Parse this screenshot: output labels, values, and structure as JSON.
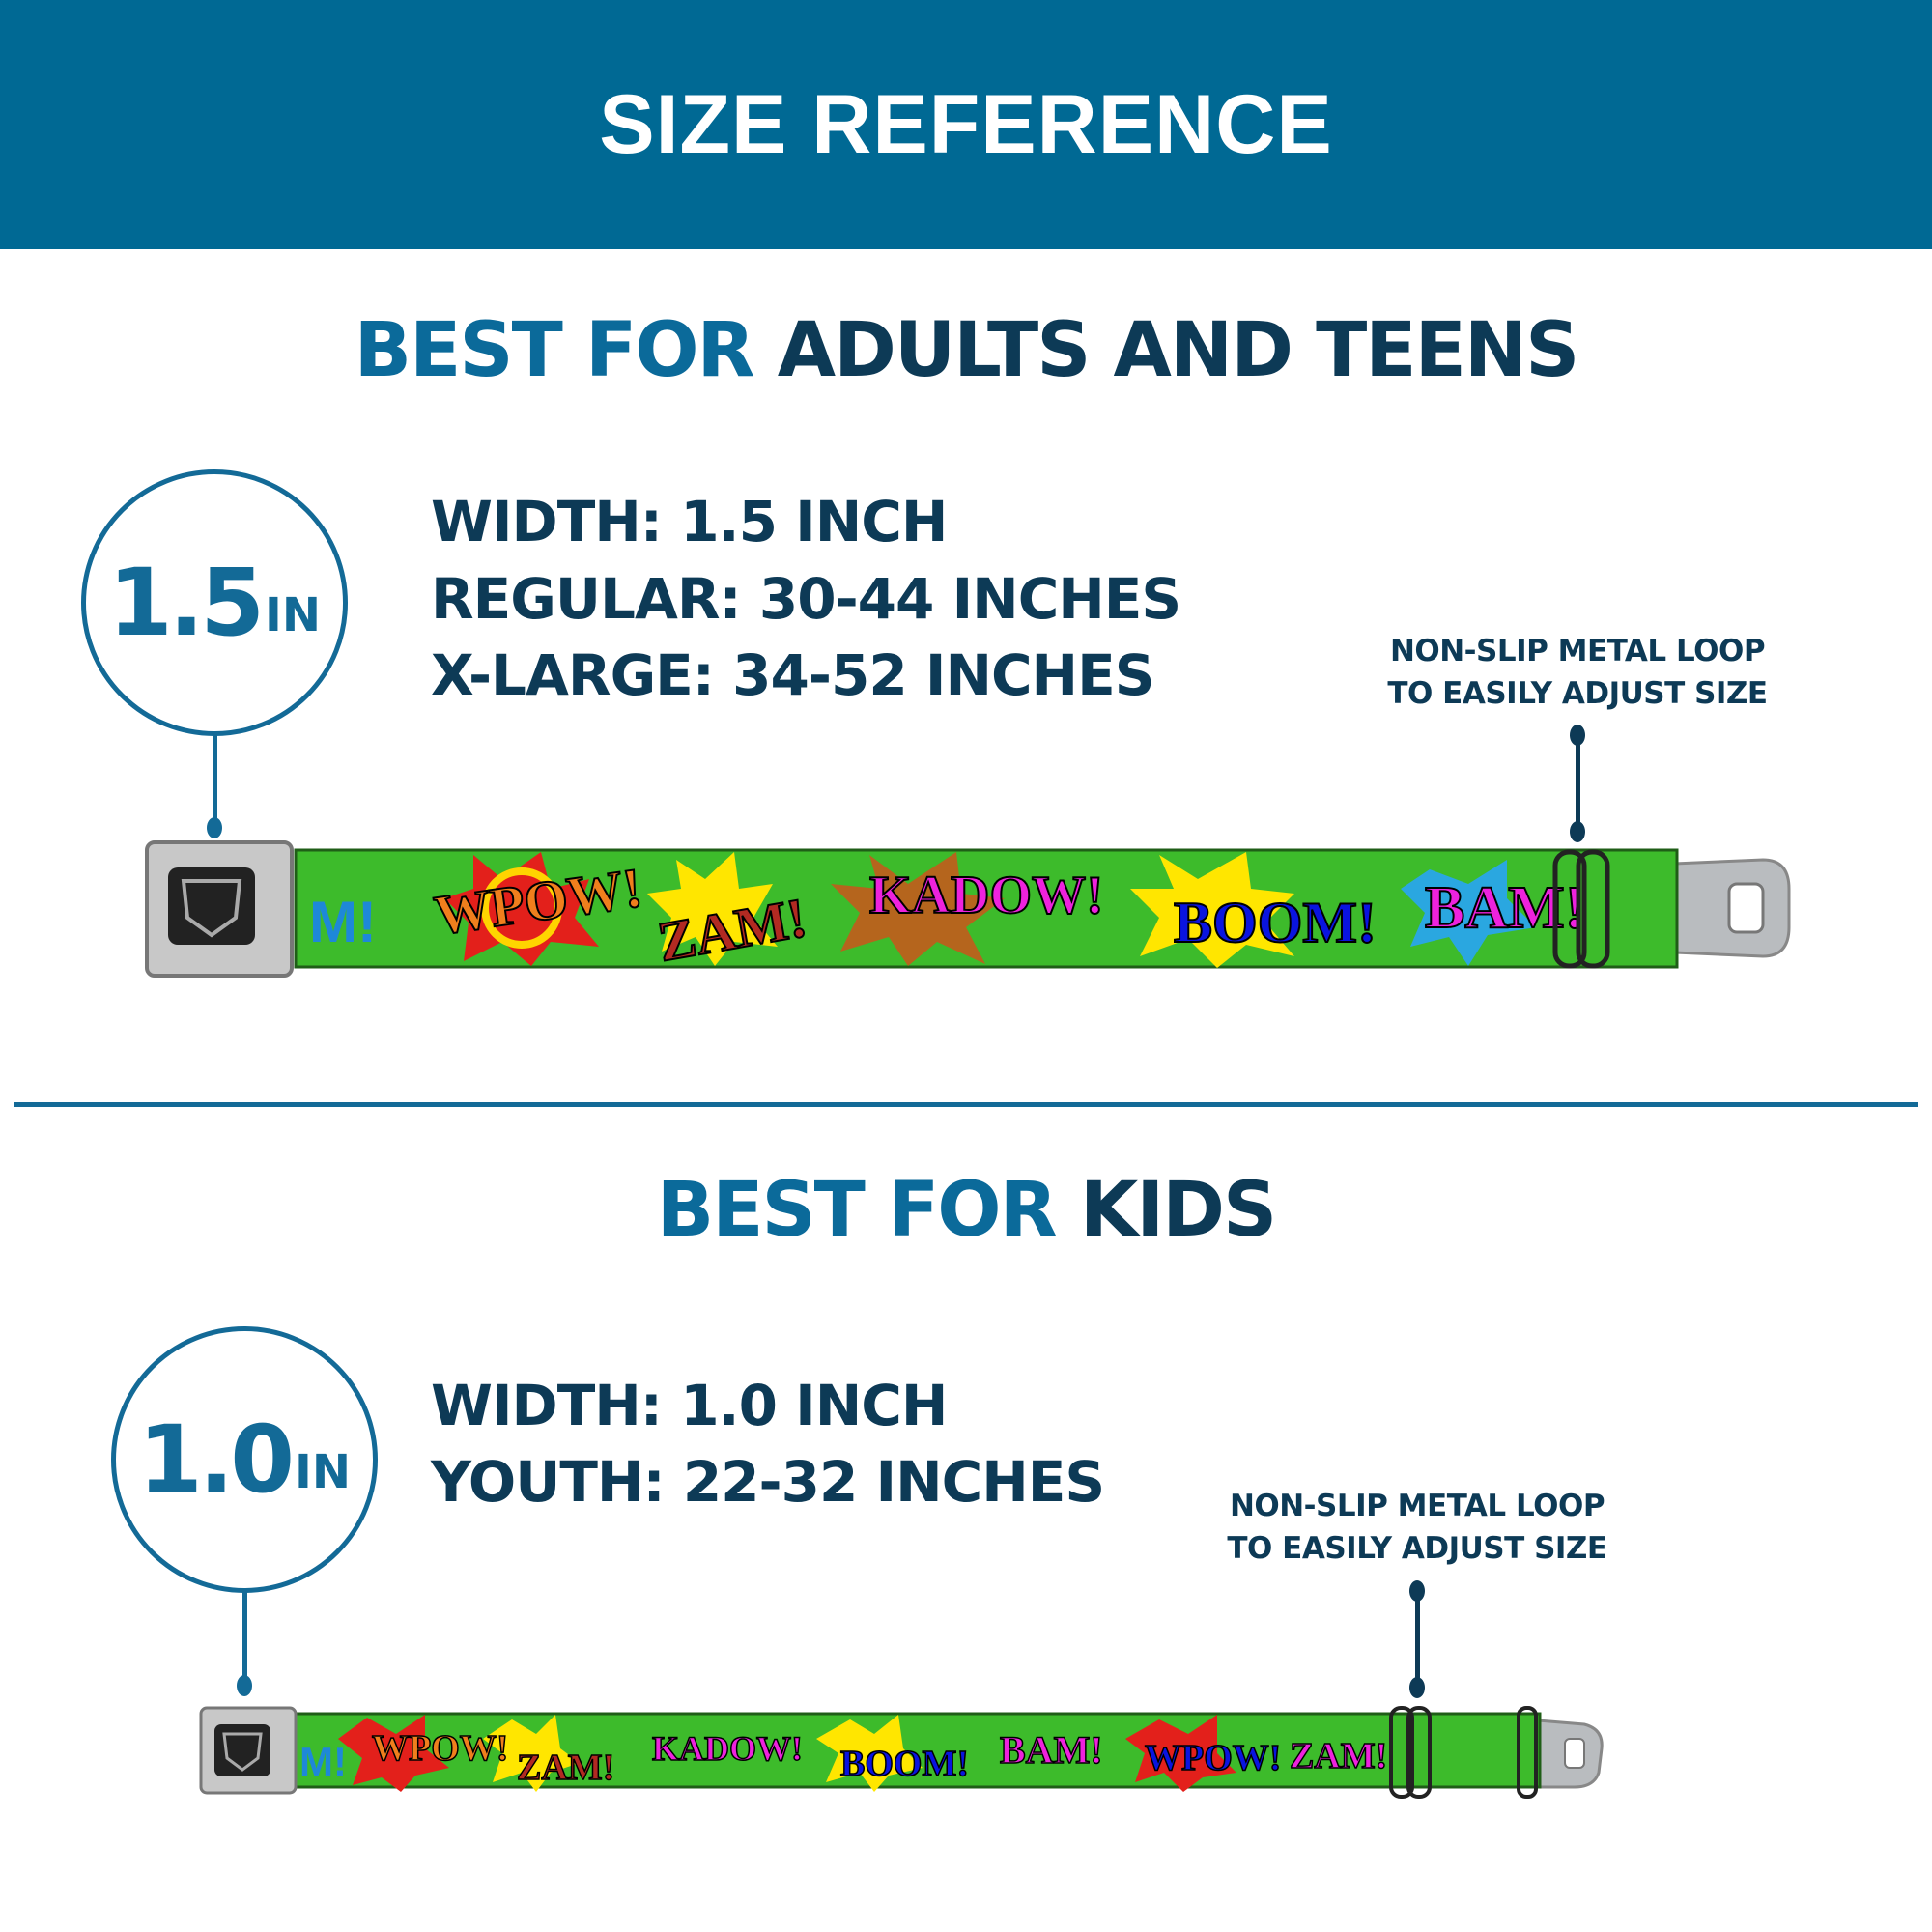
{
  "header": {
    "title": "SIZE REFERENCE"
  },
  "adults": {
    "title_accent": "BEST FOR",
    "title_main": "ADULTS AND TEENS",
    "badge_value": "1.5",
    "badge_unit": "IN",
    "specs": [
      "WIDTH: 1.5 INCH",
      "REGULAR: 30-44 INCHES",
      "X-LARGE: 34-52 INCHES"
    ],
    "loop_label": [
      "NON-SLIP METAL LOOP",
      "TO EASILY ADJUST SIZE"
    ]
  },
  "kids": {
    "title_accent": "BEST FOR",
    "title_main": "KIDS",
    "badge_value": "1.0",
    "badge_unit": "IN",
    "specs": [
      "WIDTH: 1.0 INCH",
      "YOUTH: 22-32 INCHES"
    ],
    "loop_label": [
      "NON-SLIP METAL LOOP",
      "TO EASILY ADJUST SIZE"
    ]
  },
  "belt_pattern": {
    "words": [
      "M!",
      "WPOW!",
      "ZAM!",
      "KADOW!",
      "BOOM!",
      "BAM!"
    ],
    "colors": {
      "strap": "#3dbb2b",
      "buckle": "#c8c8c8",
      "accent": "#006994",
      "dark": "#0d3a56"
    }
  }
}
